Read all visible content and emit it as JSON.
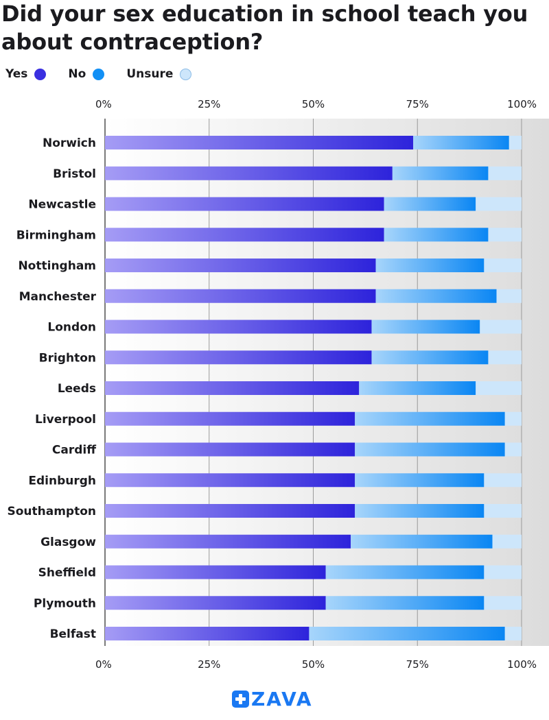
{
  "title": "Did your sex education in school teach you about contraception?",
  "legend": [
    {
      "label": "Yes",
      "color": "#3a2fe0"
    },
    {
      "label": "No",
      "color": "#1290f5"
    },
    {
      "label": "Unsure",
      "color": "#cde6fb"
    }
  ],
  "brand": "ZAVA",
  "chart_data": {
    "type": "bar",
    "orientation": "horizontal",
    "stacked": true,
    "categories": [
      "Norwich",
      "Bristol",
      "Newcastle",
      "Birmingham",
      "Nottingham",
      "Manchester",
      "London",
      "Brighton",
      "Leeds",
      "Liverpool",
      "Cardiff",
      "Edinburgh",
      "Southampton",
      "Glasgow",
      "Sheffield",
      "Plymouth",
      "Belfast"
    ],
    "series": [
      {
        "name": "Yes",
        "values": [
          74,
          69,
          67,
          67,
          65,
          65,
          64,
          64,
          61,
          60,
          60,
          60,
          60,
          59,
          53,
          53,
          49
        ]
      },
      {
        "name": "No",
        "values": [
          23,
          23,
          22,
          25,
          26,
          29,
          26,
          28,
          28,
          36,
          36,
          31,
          31,
          34,
          38,
          38,
          47
        ]
      },
      {
        "name": "Unsure",
        "values": [
          3,
          8,
          11,
          8,
          9,
          6,
          10,
          8,
          11,
          4,
          4,
          9,
          9,
          7,
          9,
          9,
          4
        ]
      }
    ],
    "xlim": [
      0,
      100
    ],
    "xticks": [
      "0%",
      "25%",
      "50%",
      "75%",
      "100%"
    ],
    "grid": true,
    "legend_position": "top-left",
    "xlabel": "",
    "ylabel": ""
  }
}
